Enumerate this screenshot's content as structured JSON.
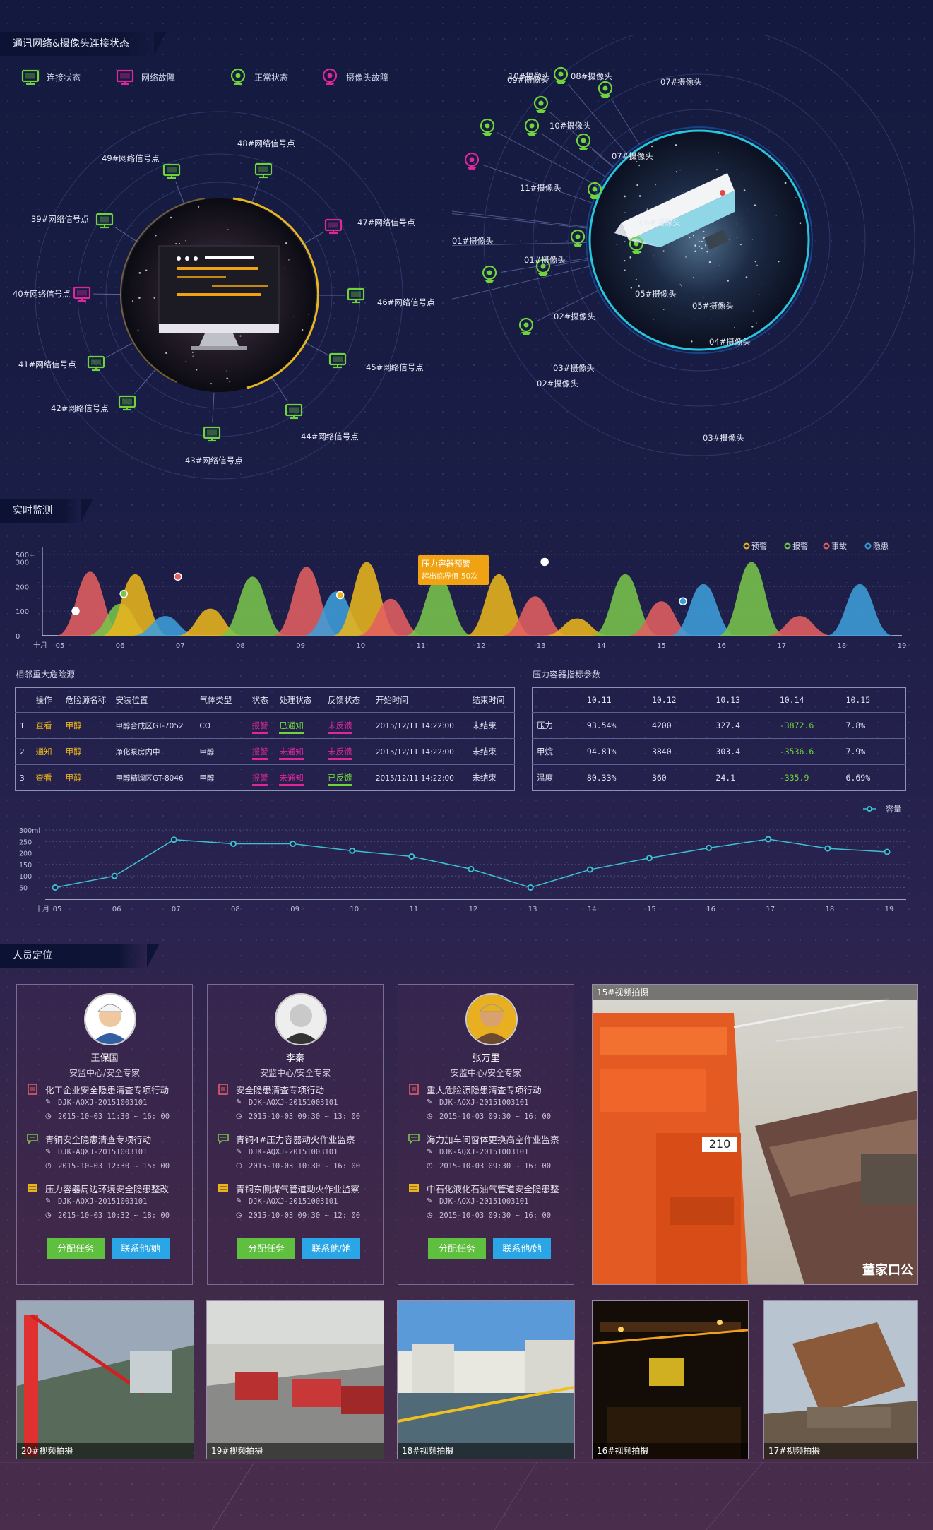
{
  "sections": {
    "network": "通讯网络&摄像头连接状态",
    "monitor": "实时监测",
    "personnel": "人员定位"
  },
  "legend": [
    {
      "label": "连接状态",
      "icon": "monitor-icon",
      "color": "#6fd43a"
    },
    {
      "label": "网络故障",
      "icon": "monitor-icon",
      "color": "#e0279a"
    },
    {
      "label": "正常状态",
      "icon": "camera-icon",
      "color": "#6fd43a"
    },
    {
      "label": "摄像头故障",
      "icon": "camera-icon",
      "color": "#e0279a"
    }
  ],
  "network_nodes": [
    {
      "label": "48#网络信号点",
      "status": "ok"
    },
    {
      "label": "49#网络信号点",
      "status": "ok"
    },
    {
      "label": "39#网络信号点",
      "status": "ok"
    },
    {
      "label": "40#网络信号点",
      "status": "fault"
    },
    {
      "label": "41#网络信号点",
      "status": "ok"
    },
    {
      "label": "42#网络信号点",
      "status": "ok"
    },
    {
      "label": "43#网络信号点",
      "status": "ok"
    },
    {
      "label": "44#网络信号点",
      "status": "ok"
    },
    {
      "label": "45#网络信号点",
      "status": "ok"
    },
    {
      "label": "46#网络信号点",
      "status": "ok"
    },
    {
      "label": "47#网络信号点",
      "status": "fault"
    }
  ],
  "camera_nodes": [
    {
      "label": "10#摄像头",
      "status": "ok"
    },
    {
      "label": "09#摄像头",
      "status": "ok"
    },
    {
      "label": "08#摄像头",
      "status": "ok"
    },
    {
      "label": "07#摄像头",
      "status": "ok"
    },
    {
      "label": "10#摄像头",
      "status": "ok"
    },
    {
      "label": "07#摄像头",
      "status": "ok"
    },
    {
      "label": "11#摄像头",
      "status": "fault"
    },
    {
      "label": "06#摄像头",
      "status": "ok"
    },
    {
      "label": "01#摄像头",
      "status": "ok"
    },
    {
      "label": "01#摄像头",
      "status": "ok"
    },
    {
      "label": "05#摄像头",
      "status": "ok"
    },
    {
      "label": "05#摄像头",
      "status": "ok"
    },
    {
      "label": "02#摄像头",
      "status": "fault"
    },
    {
      "label": "04#摄像头",
      "status": "ok"
    },
    {
      "label": "03#摄像头",
      "status": "ok"
    },
    {
      "label": "02#摄像头",
      "status": "fault"
    },
    {
      "label": "03#摄像头",
      "status": "ok"
    }
  ],
  "colors": {
    "ok": "#6fd43a",
    "fault": "#e0279a",
    "yellow": "#e9b51d",
    "red": "#e36060",
    "blue": "#3d9ed8",
    "green": "#79c44a"
  },
  "chart_data": [
    {
      "type": "area",
      "legend": [
        "预警",
        "报警",
        "事故",
        "隐患"
      ],
      "xlabel": "十月",
      "categories": [
        "05",
        "06",
        "07",
        "08",
        "09",
        "10",
        "11",
        "12",
        "13",
        "14",
        "15",
        "16",
        "17",
        "18",
        "19"
      ],
      "y_ticks": [
        "0",
        "100",
        "200",
        "300",
        "500+"
      ],
      "peaks": [
        {
          "x": 5.5,
          "y": 260,
          "series": "事故"
        },
        {
          "x": 6.0,
          "y": 130,
          "series": "报警"
        },
        {
          "x": 6.25,
          "y": 250,
          "series": "预警"
        },
        {
          "x": 6.75,
          "y": 80,
          "series": "隐患"
        },
        {
          "x": 7.5,
          "y": 110,
          "series": "预警"
        },
        {
          "x": 8.2,
          "y": 240,
          "series": "报警"
        },
        {
          "x": 9.1,
          "y": 280,
          "series": "事故"
        },
        {
          "x": 9.6,
          "y": 180,
          "series": "隐患"
        },
        {
          "x": 10.1,
          "y": 300,
          "series": "预警"
        },
        {
          "x": 10.5,
          "y": 150,
          "series": "事故"
        },
        {
          "x": 11.3,
          "y": 240,
          "series": "报警"
        },
        {
          "x": 12.3,
          "y": 250,
          "series": "预警"
        },
        {
          "x": 12.9,
          "y": 160,
          "series": "事故"
        },
        {
          "x": 13.6,
          "y": 70,
          "series": "预警"
        },
        {
          "x": 14.4,
          "y": 250,
          "series": "报警"
        },
        {
          "x": 15.0,
          "y": 140,
          "series": "事故"
        },
        {
          "x": 15.7,
          "y": 210,
          "series": "隐患"
        },
        {
          "x": 16.5,
          "y": 300,
          "series": "报警"
        },
        {
          "x": 17.3,
          "y": 80,
          "series": "事故"
        },
        {
          "x": 18.3,
          "y": 210,
          "series": "隐患"
        }
      ],
      "tooltip": {
        "title": "压力容器预警",
        "text": "超出临界值 50次"
      }
    },
    {
      "type": "line",
      "legend": [
        "容量"
      ],
      "xlabel": "十月",
      "categories": [
        "05",
        "06",
        "07",
        "08",
        "09",
        "10",
        "11",
        "12",
        "13",
        "14",
        "15",
        "16",
        "17",
        "18",
        "19"
      ],
      "y_ticks": [
        "50",
        "100",
        "150",
        "200",
        "250",
        "300ml"
      ],
      "series": [
        {
          "name": "容量",
          "values": [
            50,
            100,
            258,
            240,
            240,
            210,
            185,
            130,
            50,
            128,
            178,
            222,
            260,
            220,
            205
          ]
        }
      ]
    }
  ],
  "hazard_table": {
    "title": "相邻重大危险源",
    "headers": [
      "操作",
      "危险源名称",
      "安装位置",
      "气体类型",
      "状态",
      "处理状态",
      "反馈状态",
      "开始时间",
      "结束时间"
    ],
    "rows": [
      {
        "no": "1",
        "op": "查看",
        "name": "甲醇",
        "loc": "甲醇合成区GT-7052",
        "gas": "CO",
        "state": "报警",
        "handle": "已通知",
        "feedback": "未反馈",
        "start": "2015/12/11 14:22:00",
        "end": "未结束",
        "op_color": "#e9b51d",
        "handle_color": "#6fd43a",
        "fb_color": "#e0279a"
      },
      {
        "no": "2",
        "op": "通知",
        "name": "甲醇",
        "loc": "净化泵房内中",
        "gas": "甲醇",
        "state": "报警",
        "handle": "未通知",
        "feedback": "未反馈",
        "start": "2015/12/11 14:22:00",
        "end": "未结束",
        "op_color": "#e9b51d",
        "handle_color": "#e0279a",
        "fb_color": "#e0279a"
      },
      {
        "no": "3",
        "op": "查看",
        "name": "甲醇",
        "loc": "甲醇精馏区GT-8046",
        "gas": "甲醇",
        "state": "报警",
        "handle": "未通知",
        "feedback": "已反馈",
        "start": "2015/12/11 14:22:00",
        "end": "未结束",
        "op_color": "#e9b51d",
        "handle_color": "#e0279a",
        "fb_color": "#6fd43a"
      }
    ]
  },
  "pressure_table": {
    "title": "压力容器指标参数",
    "headers": [
      "",
      "10.11",
      "10.12",
      "10.13",
      "10.14",
      "10.15"
    ],
    "rows": [
      [
        "压力",
        "93.54%",
        "4200",
        "327.4",
        "-3872.6",
        "7.8%"
      ],
      [
        "甲烷",
        "94.81%",
        "3840",
        "303.4",
        "-3536.6",
        "7.9%"
      ],
      [
        "温度",
        "80.33%",
        "360",
        "24.1",
        "-335.9",
        "6.69%"
      ]
    ]
  },
  "people": [
    {
      "name": "王保国",
      "role": "安监中心/安全专家",
      "tasks": [
        {
          "title": "化工企业安全隐患清查专项行动",
          "code": "DJK-AQXJ-20151003101",
          "time": "2015-10-03 11:30 ~ 16: 00",
          "icon": "doc"
        },
        {
          "title": "青铜安全隐患清查专项行动",
          "code": "DJK-AQXJ-20151003101",
          "time": "2015-10-03 12:30 ~ 15: 00",
          "icon": "msg"
        },
        {
          "title": "压力容器周边环境安全隐患整改",
          "code": "DJK-AQXJ-20151003101",
          "time": "2015-10-03 10:32 ~ 18: 00",
          "icon": "flag"
        }
      ],
      "assign": "分配任务",
      "contact": "联系他/她"
    },
    {
      "name": "李秦",
      "role": "安监中心/安全专家",
      "tasks": [
        {
          "title": "安全隐患清查专项行动",
          "code": "DJK-AQXJ-20151003101",
          "time": "2015-10-03 09:30 ~ 13: 00",
          "icon": "doc"
        },
        {
          "title": "青铜4#压力容器动火作业监察",
          "code": "DJK-AQXJ-20151003101",
          "time": "2015-10-03 10:30 ~ 16: 00",
          "icon": "msg"
        },
        {
          "title": "青铜东侧煤气管道动火作业监察",
          "code": "DJK-AQXJ-20151003101",
          "time": "2015-10-03 09:30 ~ 12: 00",
          "icon": "flag"
        }
      ],
      "assign": "分配任务",
      "contact": "联系他/她"
    },
    {
      "name": "张万里",
      "role": "安监中心/安全专家",
      "tasks": [
        {
          "title": "重大危险源隐患清查专项行动",
          "code": "DJK-AQXJ-20151003101",
          "time": "2015-10-03 09:30 ~ 16: 00",
          "icon": "doc"
        },
        {
          "title": "海力加车间窗体更换高空作业监察",
          "code": "DJK-AQXJ-20151003101",
          "time": "2015-10-03 09:30 ~ 16: 00",
          "icon": "msg"
        },
        {
          "title": "中石化液化石油气管道安全隐患整",
          "code": "DJK-AQXJ-20151003101",
          "time": "2015-10-03 09:30 ~ 16: 00",
          "icon": "flag"
        }
      ],
      "assign": "分配任务",
      "contact": "联系他/她"
    }
  ],
  "videos": {
    "main": {
      "caption": "15#视频拍摄",
      "ship_number": "210",
      "watermark": "董家口公"
    },
    "thumbs": [
      "20#视频拍摄",
      "19#视频拍摄",
      "18#视频拍摄",
      "16#视频拍摄",
      "17#视频拍摄"
    ]
  }
}
